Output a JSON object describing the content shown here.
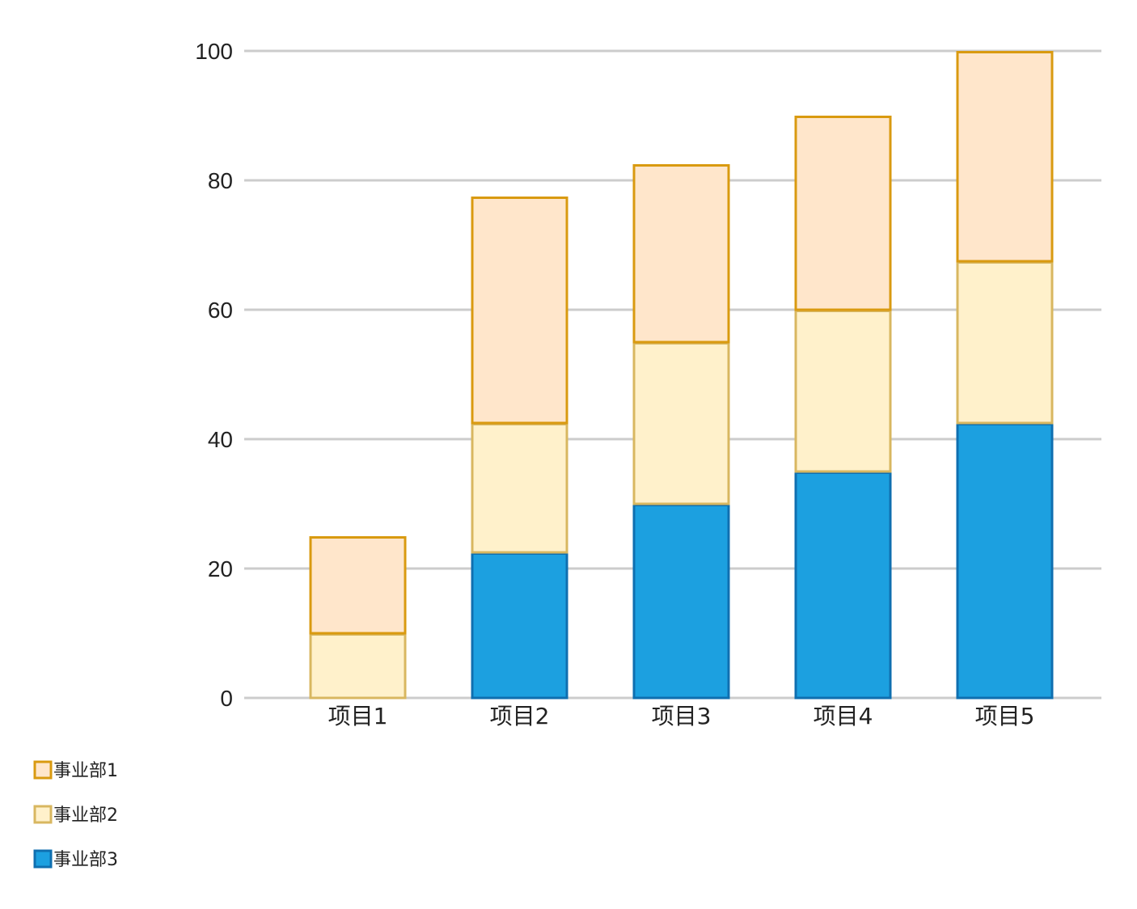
{
  "chart_data": {
    "type": "bar",
    "stacked": true,
    "categories": [
      "项目1",
      "项目2",
      "项目3",
      "项目4",
      "项目5"
    ],
    "series": [
      {
        "name": "事业部3",
        "values": [
          0,
          22.5,
          30,
          35,
          42.5
        ],
        "fill": "#1ca0e0",
        "stroke": "#0f6fb0"
      },
      {
        "name": "事业部2",
        "values": [
          10,
          20,
          25,
          25,
          25
        ],
        "fill": "#fff1cb",
        "stroke": "#d8b760"
      },
      {
        "name": "事业部1",
        "values": [
          15,
          35,
          27.5,
          30,
          32.5
        ],
        "fill": "#ffe6cb",
        "stroke": "#d99a10"
      }
    ],
    "legend_order": [
      "事业部1",
      "事业部2",
      "事业部3"
    ],
    "ylim": [
      0,
      100
    ],
    "yticks": [
      0,
      20,
      40,
      60,
      80,
      100
    ],
    "grid": true,
    "legend_position": "bottom-left",
    "title": "",
    "xlabel": "",
    "ylabel": "",
    "grid_color": "#cccccc"
  }
}
